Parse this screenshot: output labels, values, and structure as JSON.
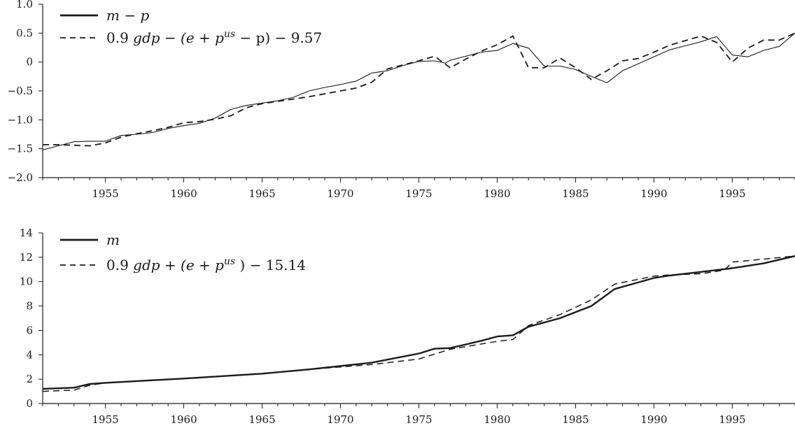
{
  "chart_data": [
    {
      "type": "line",
      "id": "top",
      "title": "",
      "xlabel": "",
      "ylabel": "",
      "xlim": [
        1951,
        1999
      ],
      "ylim": [
        -2.0,
        1.0
      ],
      "x_ticks": [
        1955,
        1960,
        1965,
        1970,
        1975,
        1980,
        1985,
        1990,
        1995
      ],
      "x_tick_labels": [
        "1955",
        "1960",
        "1965",
        "1970",
        "1975",
        "1980",
        "1985",
        "1990",
        "1995"
      ],
      "y_ticks": [
        -2.0,
        -1.5,
        -1.0,
        -0.5,
        0,
        0.5,
        1.0
      ],
      "y_tick_labels": [
        "−2.0",
        "−1.5",
        "−1.0",
        "−0.5",
        "0",
        "0.5",
        "1.0"
      ],
      "grid": false,
      "legend_position": "top-left",
      "series": [
        {
          "name": "m − p",
          "legend": {
            "prefix": "",
            "italic_main": "m − p",
            "sup": "",
            "suffix": ""
          },
          "style": "solid",
          "x": [
            1951,
            1952,
            1953,
            1954,
            1955,
            1956,
            1957,
            1958,
            1959,
            1960,
            1961,
            1962,
            1963,
            1964,
            1965,
            1966,
            1967,
            1968,
            1969,
            1970,
            1971,
            1972,
            1973,
            1974,
            1975,
            1976,
            1976.7,
            1977,
            1978,
            1979,
            1980,
            1981,
            1982,
            1983,
            1984,
            1985,
            1986,
            1987,
            1988,
            1989,
            1990,
            1991,
            1992,
            1993,
            1994,
            1995,
            1996,
            1997,
            1998,
            1999
          ],
          "y": [
            -1.52,
            -1.45,
            -1.38,
            -1.37,
            -1.37,
            -1.27,
            -1.25,
            -1.22,
            -1.15,
            -1.1,
            -1.06,
            -0.97,
            -0.82,
            -0.75,
            -0.71,
            -0.67,
            -0.61,
            -0.5,
            -0.44,
            -0.39,
            -0.33,
            -0.19,
            -0.15,
            -0.06,
            0.01,
            0.02,
            -0.02,
            0.03,
            0.1,
            0.17,
            0.2,
            0.32,
            0.24,
            -0.07,
            -0.07,
            -0.13,
            -0.25,
            -0.36,
            -0.15,
            -0.03,
            0.09,
            0.21,
            0.28,
            0.35,
            0.44,
            0.12,
            0.09,
            0.2,
            0.27,
            0.5
          ]
        },
        {
          "name": "0.9 gdp − (e + p^us − p) − 9.57",
          "legend": {
            "prefix": "0.9 ",
            "italic_main": "gdp − (e + p",
            "sup": "us",
            "suffix": "− p) − 9.57"
          },
          "style": "dashed",
          "x": [
            1951,
            1952,
            1953,
            1954,
            1955,
            1956,
            1957,
            1958,
            1959,
            1960,
            1961,
            1962,
            1963,
            1964,
            1965,
            1966,
            1967,
            1968,
            1969,
            1970,
            1971,
            1972,
            1973,
            1974,
            1975,
            1976,
            1977,
            1978,
            1979,
            1980,
            1981,
            1982,
            1983,
            1984,
            1985,
            1986,
            1987,
            1988,
            1989,
            1990,
            1991,
            1992,
            1993,
            1994,
            1995,
            1996,
            1997,
            1998,
            1999
          ],
          "y": [
            -1.43,
            -1.43,
            -1.44,
            -1.45,
            -1.4,
            -1.3,
            -1.24,
            -1.19,
            -1.13,
            -1.05,
            -1.03,
            -0.99,
            -0.93,
            -0.79,
            -0.72,
            -0.68,
            -0.64,
            -0.6,
            -0.55,
            -0.5,
            -0.45,
            -0.35,
            -0.12,
            -0.05,
            0.02,
            0.1,
            -0.1,
            0.05,
            0.19,
            0.3,
            0.45,
            -0.1,
            -0.1,
            0.07,
            -0.1,
            -0.3,
            -0.15,
            0.02,
            0.06,
            0.17,
            0.29,
            0.37,
            0.45,
            0.34,
            0.0,
            0.24,
            0.38,
            0.38,
            0.5
          ]
        }
      ]
    },
    {
      "type": "line",
      "id": "bottom",
      "title": "",
      "xlabel": "",
      "ylabel": "",
      "xlim": [
        1951,
        1999
      ],
      "ylim": [
        0,
        14
      ],
      "x_ticks": [
        1955,
        1960,
        1965,
        1970,
        1975,
        1980,
        1985,
        1990,
        1995
      ],
      "x_tick_labels": [
        "1955",
        "1960",
        "1965",
        "1970",
        "1975",
        "1980",
        "1985",
        "1990",
        "1995"
      ],
      "y_ticks": [
        0,
        2,
        4,
        6,
        8,
        10,
        12,
        14
      ],
      "y_tick_labels": [
        "0",
        "2",
        "4",
        "6",
        "8",
        "10",
        "12",
        "14"
      ],
      "grid": false,
      "legend_position": "top-left",
      "series": [
        {
          "name": "m",
          "legend": {
            "prefix": "",
            "italic_main": "m",
            "sup": "",
            "suffix": ""
          },
          "style": "solid",
          "x": [
            1951,
            1953,
            1954,
            1955,
            1960,
            1965,
            1968,
            1972,
            1975,
            1976,
            1977,
            1978,
            1979,
            1980,
            1981,
            1982,
            1984,
            1986,
            1987.5,
            1990,
            1991,
            1993,
            1995,
            1997,
            1999
          ],
          "y": [
            1.2,
            1.3,
            1.6,
            1.7,
            2.05,
            2.45,
            2.8,
            3.35,
            4.1,
            4.5,
            4.55,
            4.85,
            5.15,
            5.5,
            5.6,
            6.3,
            7.0,
            8.0,
            9.4,
            10.3,
            10.5,
            10.8,
            11.1,
            11.5,
            12.1
          ]
        },
        {
          "name": "0.9 gdp + (e + p^us) − 15.14",
          "legend": {
            "prefix": "0.9 ",
            "italic_main": "gdp + (e + p",
            "sup": "us",
            "suffix": ") − 15.14"
          },
          "style": "dashed",
          "x": [
            1951,
            1953,
            1954,
            1955,
            1960,
            1965,
            1968,
            1970,
            1972,
            1975,
            1977,
            1980,
            1981,
            1982,
            1984,
            1986,
            1987.5,
            1990,
            1991,
            1993,
            1994.5,
            1995,
            1997,
            1999
          ],
          "y": [
            1.0,
            1.1,
            1.5,
            1.7,
            2.05,
            2.45,
            2.8,
            3.0,
            3.2,
            3.65,
            4.45,
            5.1,
            5.25,
            6.4,
            7.3,
            8.5,
            9.8,
            10.45,
            10.55,
            10.65,
            10.95,
            11.6,
            11.85,
            12.1
          ]
        }
      ]
    }
  ]
}
